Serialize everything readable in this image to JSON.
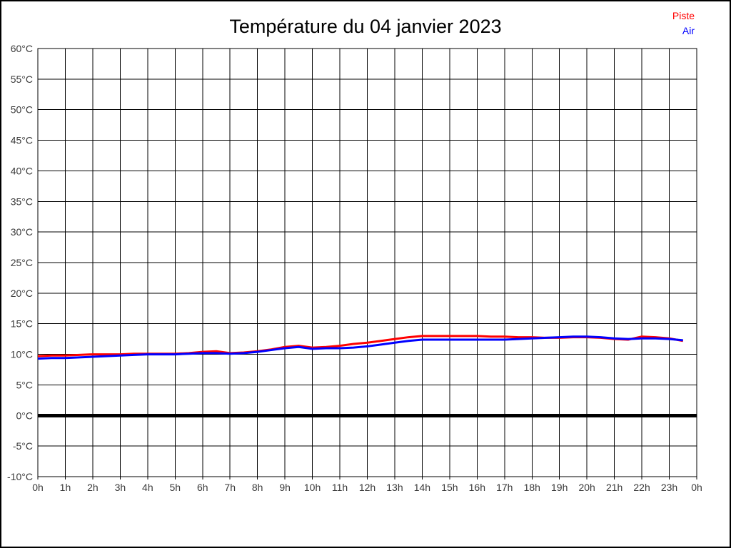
{
  "page": {
    "background": "#ffffff",
    "border_color": "#000000"
  },
  "chart_data": {
    "type": "line",
    "title": "Température du 04 janvier 2023",
    "xlabel": "",
    "ylabel": "",
    "xlim": [
      0,
      24
    ],
    "ylim": [
      -10,
      60
    ],
    "grid": true,
    "grid_color": "#000000",
    "axis_label_color": "#3a3a3a",
    "zero_line": {
      "value": 0,
      "width": 5,
      "color": "#000000"
    },
    "legend_position": "top-right",
    "y_ticks": {
      "values": [
        60,
        55,
        50,
        45,
        40,
        35,
        30,
        25,
        20,
        15,
        10,
        5,
        0,
        -5,
        -10
      ],
      "labels": [
        "60°C",
        "55°C",
        "50°C",
        "45°C",
        "40°C",
        "35°C",
        "30°C",
        "25°C",
        "20°C",
        "15°C",
        "10°C",
        "5°C",
        "0°C",
        "-5°C",
        "-10°C"
      ]
    },
    "x_ticks": {
      "values": [
        0,
        1,
        2,
        3,
        4,
        5,
        6,
        7,
        8,
        9,
        10,
        11,
        12,
        13,
        14,
        15,
        16,
        17,
        18,
        19,
        20,
        21,
        22,
        23,
        24
      ],
      "labels": [
        "0h",
        "1h",
        "2h",
        "3h",
        "4h",
        "5h",
        "6h",
        "7h",
        "8h",
        "9h",
        "10h",
        "11h",
        "12h",
        "13h",
        "14h",
        "15h",
        "16h",
        "17h",
        "18h",
        "19h",
        "20h",
        "21h",
        "22h",
        "23h",
        "0h"
      ]
    },
    "x": [
      0,
      0.5,
      1,
      1.5,
      2,
      2.5,
      3,
      3.5,
      4,
      4.5,
      5,
      5.5,
      6,
      6.5,
      7,
      7.5,
      8,
      8.5,
      9,
      9.5,
      10,
      10.5,
      11,
      11.5,
      12,
      12.5,
      13,
      13.5,
      14,
      14.5,
      15,
      15.5,
      16,
      16.5,
      17,
      17.5,
      18,
      18.5,
      19,
      19.5,
      20,
      20.5,
      21,
      21.5,
      22,
      22.5,
      23,
      23.5
    ],
    "series": [
      {
        "name": "Piste",
        "color": "#ff0000",
        "values": [
          9.7,
          9.8,
          9.8,
          9.9,
          10.0,
          10.0,
          10.0,
          10.1,
          10.1,
          10.1,
          10.1,
          10.2,
          10.4,
          10.5,
          10.2,
          10.3,
          10.5,
          10.8,
          11.2,
          11.4,
          11.1,
          11.2,
          11.4,
          11.7,
          11.9,
          12.2,
          12.5,
          12.8,
          13.0,
          13.0,
          13.0,
          13.0,
          13.0,
          12.9,
          12.9,
          12.8,
          12.8,
          12.7,
          12.7,
          12.8,
          12.8,
          12.7,
          12.5,
          12.4,
          12.9,
          12.8,
          12.6,
          12.2
        ]
      },
      {
        "name": "Air",
        "color": "#0000ff",
        "values": [
          9.3,
          9.4,
          9.4,
          9.5,
          9.6,
          9.7,
          9.8,
          9.9,
          10.0,
          10.0,
          10.0,
          10.1,
          10.2,
          10.2,
          10.1,
          10.2,
          10.4,
          10.7,
          11.0,
          11.2,
          10.9,
          11.0,
          11.0,
          11.1,
          11.3,
          11.6,
          11.9,
          12.2,
          12.4,
          12.4,
          12.4,
          12.4,
          12.4,
          12.4,
          12.4,
          12.5,
          12.6,
          12.7,
          12.8,
          12.9,
          12.9,
          12.8,
          12.6,
          12.5,
          12.6,
          12.6,
          12.5,
          12.3
        ]
      }
    ]
  }
}
